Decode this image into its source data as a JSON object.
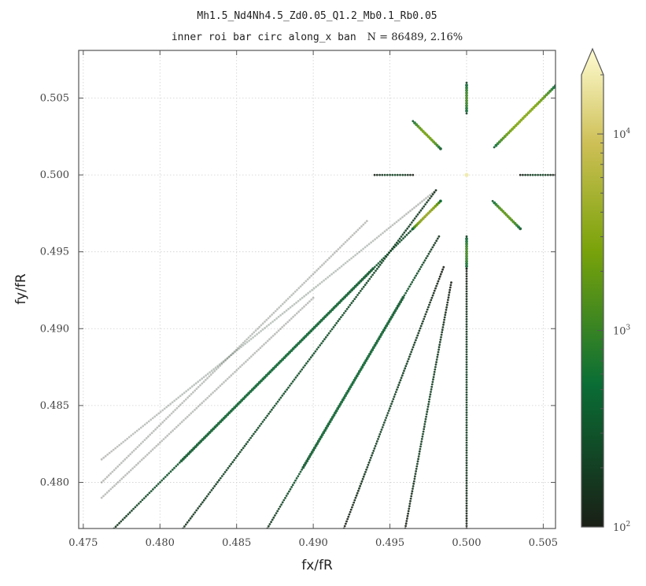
{
  "chart_data": {
    "type": "scatter",
    "title": "Mh1.5_Nd4Nh4.5_Zd0.05_Q1.2_Mb0.1_Rb0.05",
    "subtitle": "inner roi bar circ along_x ban",
    "subtitle_stats": "N = 86489,   2.16%",
    "xlabel": "fx/fR",
    "ylabel": "fy/fR",
    "xlim": [
      0.4747,
      0.5058
    ],
    "ylim": [
      0.477,
      0.5081
    ],
    "xticks": [
      "0.475",
      "0.480",
      "0.485",
      "0.490",
      "0.495",
      "0.500",
      "0.505"
    ],
    "yticks": [
      "0.480",
      "0.485",
      "0.490",
      "0.495",
      "0.500",
      "0.505"
    ],
    "grid": true,
    "colorbar": {
      "scale": "log",
      "range": [
        100,
        20000
      ],
      "ticks": [
        "10^2",
        "10^3",
        "10^4"
      ],
      "colormap": [
        "#1a1f16",
        "#0a6e35",
        "#7aa30a",
        "#cdbf55",
        "#fffcd2"
      ]
    },
    "series": [
      {
        "segment": "main-diagonal",
        "x": [
          0.477,
          0.4983
        ],
        "y": [
          0.477,
          0.4983
        ],
        "density": [
          150,
          400
        ]
      },
      {
        "segment": "upper-right-diagonal",
        "x": [
          0.5018,
          0.5058
        ],
        "y": [
          0.5018,
          0.5058
        ],
        "density": [
          300,
          2500
        ]
      },
      {
        "segment": "upper-left-cluster",
        "x": [
          0.4965,
          0.4983
        ],
        "y": [
          0.5035,
          0.5017
        ],
        "density": [
          300,
          2000
        ]
      },
      {
        "segment": "lower-right-cluster",
        "x": [
          0.5017,
          0.5035
        ],
        "y": [
          0.4983,
          0.4965
        ],
        "density": [
          300,
          1500
        ]
      },
      {
        "segment": "lower-left-cluster",
        "x": [
          0.4965,
          0.4983
        ],
        "y": [
          0.4965,
          0.4983
        ],
        "density": [
          500,
          4000
        ]
      },
      {
        "segment": "vertical-line-top",
        "x": [
          0.5,
          0.5
        ],
        "y": [
          0.504,
          0.506
        ],
        "density": [
          200,
          1000
        ]
      },
      {
        "segment": "vertical-line-bottom",
        "x": [
          0.5,
          0.5
        ],
        "y": [
          0.4939,
          0.496
        ],
        "density": [
          200,
          1000
        ]
      },
      {
        "segment": "vertical-line-faint",
        "x": [
          0.5,
          0.5
        ],
        "y": [
          0.477,
          0.4939
        ],
        "density": [
          100,
          200
        ]
      },
      {
        "segment": "horizontal-line-left",
        "x": [
          0.494,
          0.4965
        ],
        "y": [
          0.5,
          0.5
        ],
        "density": [
          100,
          200
        ]
      },
      {
        "segment": "horizontal-line-right",
        "x": [
          0.5035,
          0.5058
        ],
        "y": [
          0.5,
          0.5
        ],
        "density": [
          100,
          200
        ]
      },
      {
        "segment": "center-point",
        "x": [
          0.5,
          0.5
        ],
        "y": [
          0.5,
          0.5
        ],
        "density": [
          15000,
          15000
        ]
      },
      {
        "segment": "fan-line-1",
        "x": [
          0.4815,
          0.498
        ],
        "y": [
          0.477,
          0.499
        ],
        "density": [
          150,
          250
        ]
      },
      {
        "segment": "fan-line-2",
        "x": [
          0.487,
          0.4982
        ],
        "y": [
          0.477,
          0.496
        ],
        "density": [
          150,
          400
        ]
      },
      {
        "segment": "fan-line-3",
        "x": [
          0.492,
          0.4985
        ],
        "y": [
          0.477,
          0.494
        ],
        "density": [
          100,
          200
        ]
      },
      {
        "segment": "fan-line-4",
        "x": [
          0.496,
          0.499
        ],
        "y": [
          0.477,
          0.493
        ],
        "density": [
          100,
          200
        ]
      },
      {
        "segment": "faint-line-1",
        "x": [
          0.4762,
          0.498
        ],
        "y": [
          0.4815,
          0.499
        ],
        "density": [
          100,
          150
        ]
      },
      {
        "segment": "faint-line-2",
        "x": [
          0.4762,
          0.4935
        ],
        "y": [
          0.48,
          0.497
        ],
        "density": [
          100,
          120
        ]
      },
      {
        "segment": "faint-line-3",
        "x": [
          0.4762,
          0.49
        ],
        "y": [
          0.479,
          0.492
        ],
        "density": [
          100,
          110
        ]
      }
    ]
  }
}
